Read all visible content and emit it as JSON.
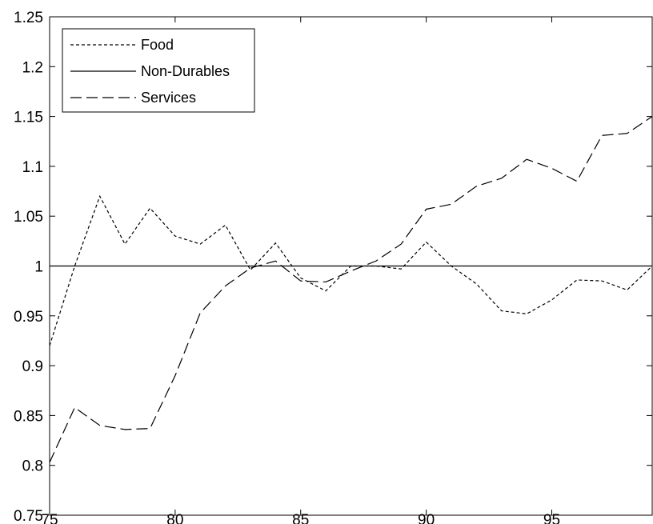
{
  "chart_data": {
    "type": "line",
    "title": "",
    "xlabel": "",
    "ylabel": "",
    "xlim": [
      75,
      99
    ],
    "ylim": [
      0.75,
      1.25
    ],
    "xticks": [
      75,
      80,
      85,
      90,
      95
    ],
    "xtick_labels": [
      "75",
      "80",
      "85",
      "90",
      "95"
    ],
    "yticks": [
      0.75,
      0.8,
      0.85,
      0.9,
      0.95,
      1.0,
      1.05,
      1.1,
      1.15,
      1.2,
      1.25
    ],
    "ytick_labels": [
      "0.75",
      "0.8",
      "0.85",
      "0.9",
      "0.95",
      "1",
      "1.05",
      "1.1",
      "1.15",
      "1.2",
      "1.25"
    ],
    "grid": false,
    "legend_position": "top-left",
    "x": [
      75,
      76,
      77,
      78,
      79,
      80,
      81,
      82,
      83,
      84,
      85,
      86,
      87,
      88,
      89,
      90,
      91,
      92,
      93,
      94,
      95,
      96,
      97,
      98,
      99
    ],
    "series": [
      {
        "name": "Food",
        "style": "dotted",
        "color": "#000000",
        "values": [
          0.92,
          1.0,
          1.07,
          1.022,
          1.058,
          1.03,
          1.022,
          1.041,
          0.996,
          1.023,
          0.988,
          0.975,
          1.0,
          1.0,
          0.997,
          1.024,
          1.0,
          0.982,
          0.955,
          0.952,
          0.966,
          0.986,
          0.985,
          0.976,
          1.0
        ]
      },
      {
        "name": "Non-Durables",
        "style": "solid",
        "color": "#000000",
        "values": [
          1,
          1,
          1,
          1,
          1,
          1,
          1,
          1,
          1,
          1,
          1,
          1,
          1,
          1,
          1,
          1,
          1,
          1,
          1,
          1,
          1,
          1,
          1,
          1,
          1
        ]
      },
      {
        "name": "Services",
        "style": "dashed",
        "color": "#000000",
        "values": [
          0.803,
          0.858,
          0.84,
          0.836,
          0.837,
          0.89,
          0.953,
          0.98,
          0.998,
          1.005,
          0.985,
          0.984,
          0.995,
          1.005,
          1.022,
          1.057,
          1.062,
          1.08,
          1.088,
          1.107,
          1.098,
          1.085,
          1.131,
          1.133,
          1.15
        ]
      }
    ]
  }
}
